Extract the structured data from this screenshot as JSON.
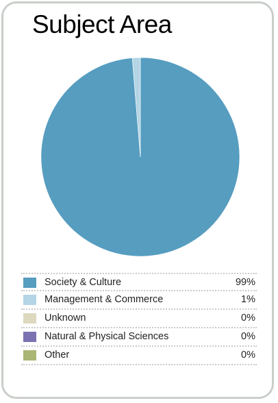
{
  "chart_data": {
    "type": "pie",
    "title": "Subject Area",
    "categories": [
      "Society & Culture",
      "Management & Commerce",
      "Unknown",
      "Natural & Physical Sciences",
      "Other"
    ],
    "values": [
      98.7,
      1.3,
      0,
      0,
      0
    ],
    "value_labels": [
      "99%",
      "1%",
      "0%",
      "0%",
      "0%"
    ],
    "colors": [
      "#569dc0",
      "#b4d5e5",
      "#ddd9bf",
      "#7b72b2",
      "#aab774"
    ],
    "legend_position": "bottom"
  }
}
